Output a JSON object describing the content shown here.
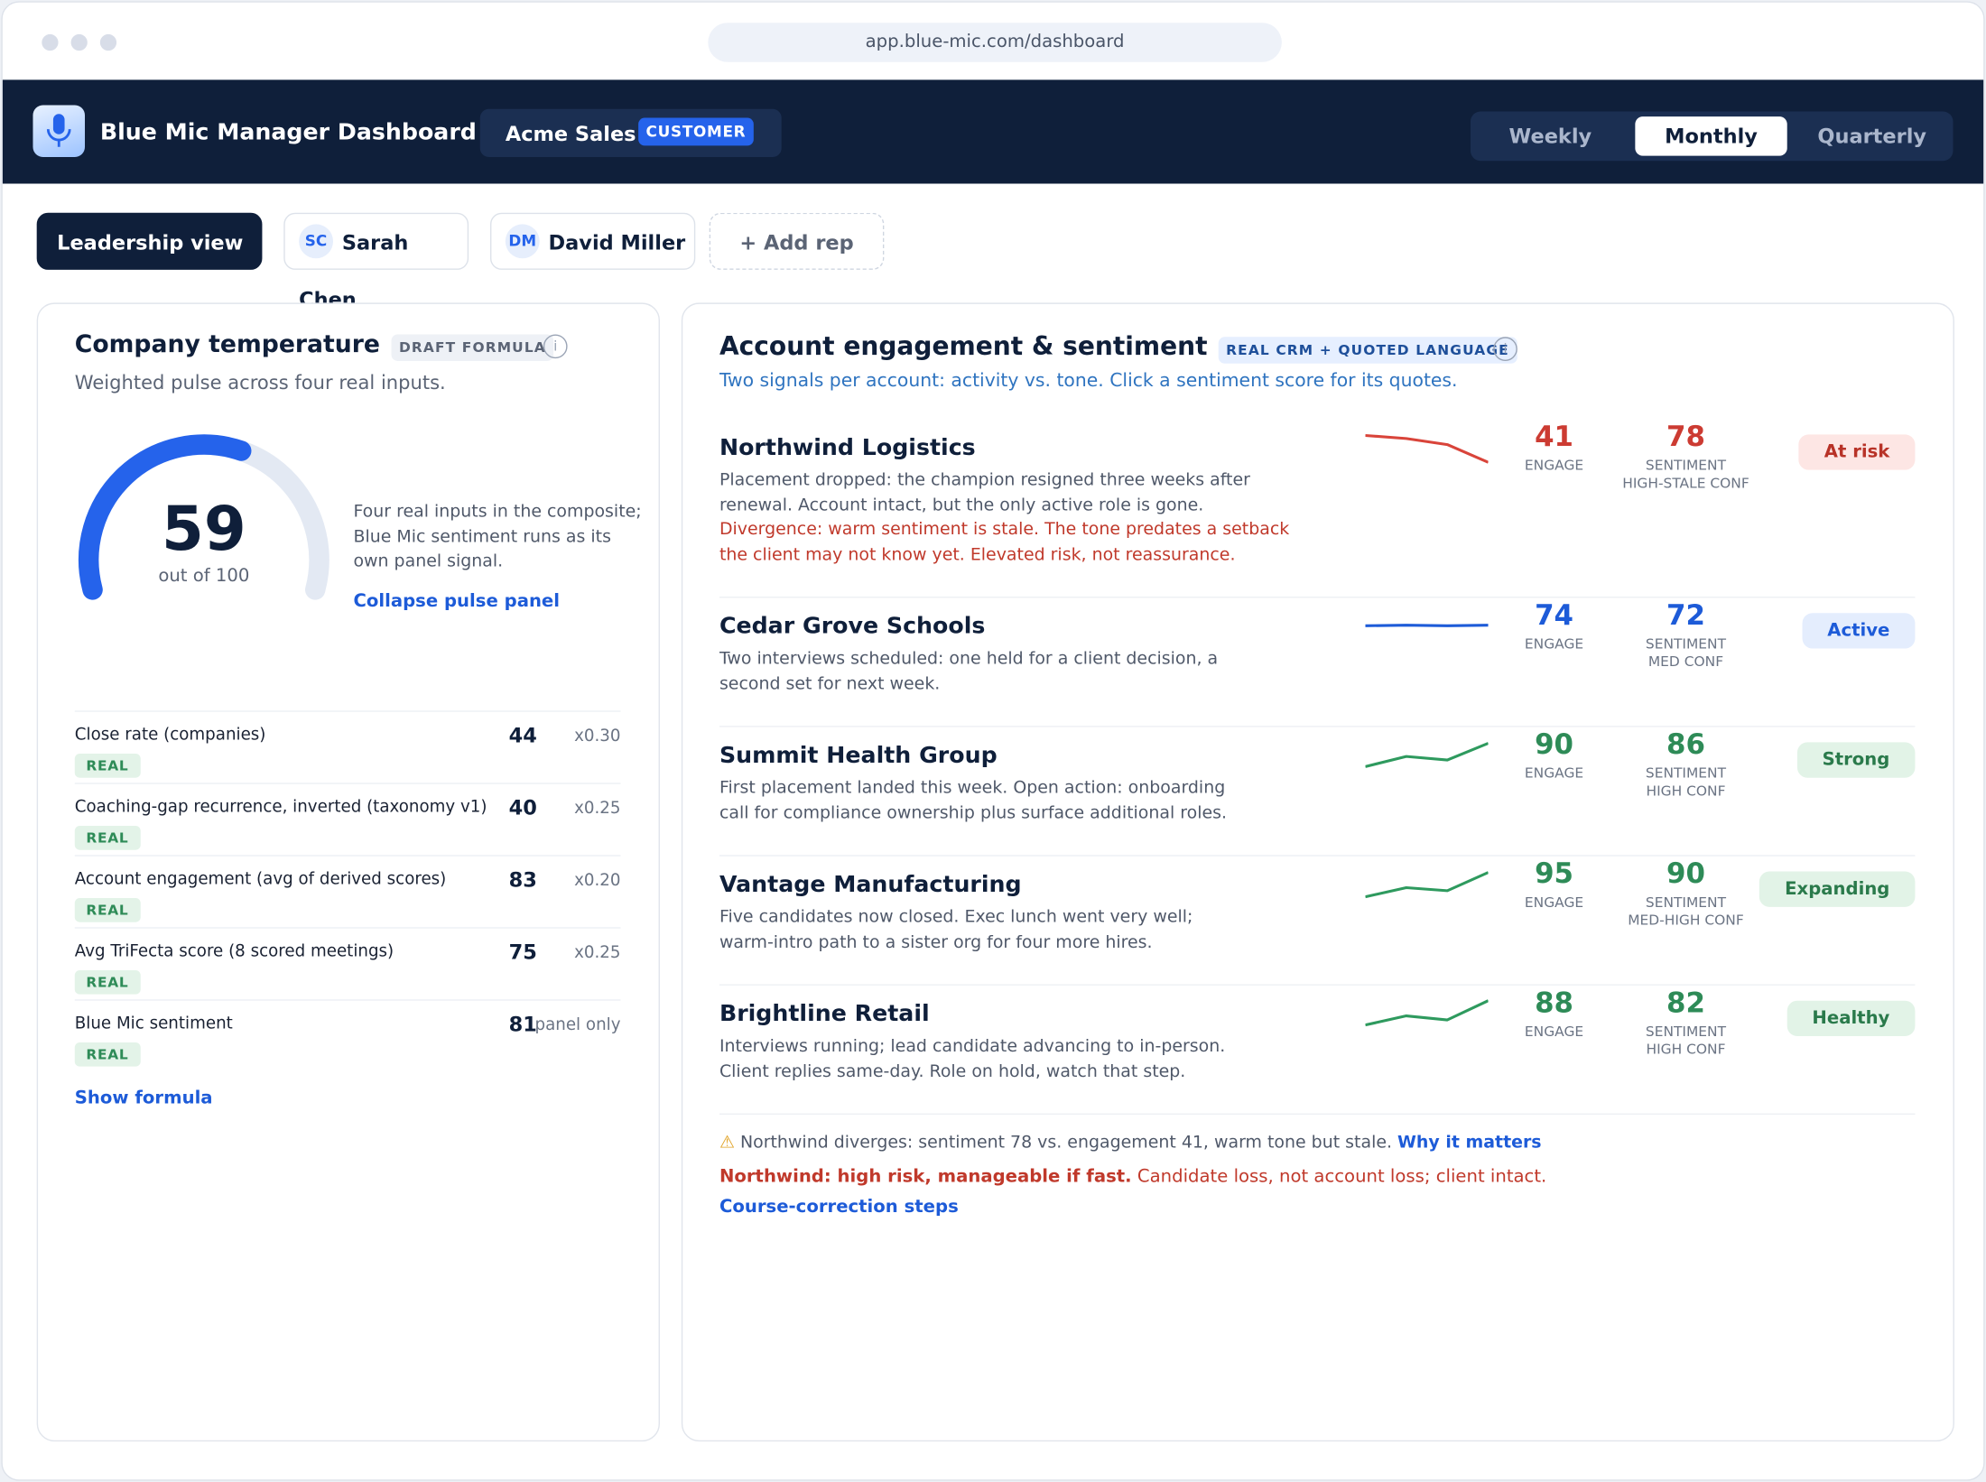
{
  "browser": {
    "url": "app.blue-mic.com/dashboard"
  },
  "header": {
    "title": "Blue Mic Manager Dashboard",
    "org": "Acme Sales",
    "org_badge": "CUSTOMER",
    "periods": [
      "Weekly",
      "Monthly",
      "Quarterly"
    ],
    "active_period": 1
  },
  "tabs": {
    "items": [
      {
        "label": "Leadership view"
      },
      {
        "initials": "SC",
        "label": "Sarah Chen"
      },
      {
        "initials": "DM",
        "label": "David Miller"
      }
    ],
    "add": "+ Add rep",
    "active": 0
  },
  "temperature": {
    "title": "Company temperature",
    "badge": "DRAFT FORMULA",
    "subtitle": "Weighted pulse across four real inputs.",
    "gauge": {
      "value": 59,
      "range": [
        0,
        100
      ],
      "caption": "out of 100"
    },
    "note": "Four real inputs in the composite; Blue Mic sentiment runs as its own panel signal.",
    "link": "Collapse pulse panel",
    "inputs": [
      {
        "label": "Close rate (companies)",
        "tag": "REAL",
        "value": 44,
        "weight": "x0.30"
      },
      {
        "label": "Coaching-gap recurrence, inverted (taxonomy v1)",
        "tag": "REAL",
        "value": 40,
        "weight": "x0.25"
      },
      {
        "label": "Account engagement (avg of derived scores)",
        "tag": "REAL",
        "value": 83,
        "weight": "x0.20"
      },
      {
        "label": "Avg TriFecta score (8 scored meetings)",
        "tag": "REAL",
        "value": 75,
        "weight": "x0.25"
      },
      {
        "label": "Blue Mic sentiment",
        "tag": "REAL",
        "value": 81,
        "weight": "panel only"
      }
    ],
    "footer_link": "Show formula"
  },
  "accounts": {
    "title": "Account engagement & sentiment",
    "badge": "REAL CRM + QUOTED LANGUAGE",
    "subtitle": "Two signals per account: activity vs. tone. Click a sentiment score for its quotes.",
    "trend_ylim": [
      0,
      100
    ],
    "rows": [
      {
        "name": "Northwind Logistics",
        "description": "Placement dropped: the champion resigned three weeks after renewal. Account intact, but the only active role is gone.",
        "divergence": "Divergence: warm sentiment is stale. The tone predates a setback the client may not know yet. Elevated risk, not reassurance.",
        "trend": [
          68,
          62,
          50,
          15
        ],
        "engage": 41,
        "engage_label": "ENGAGE",
        "sentiment": 78,
        "sentiment_label": "SENTIMENT",
        "confidence": "HIGH-STALE CONF",
        "status": "At risk",
        "tone": "risk"
      },
      {
        "name": "Cedar Grove Schools",
        "description": "Two interviews scheduled: one held for a client decision, a second set for next week.",
        "trend": [
          45,
          46,
          45,
          46
        ],
        "engage": 74,
        "engage_label": "ENGAGE",
        "sentiment": 72,
        "sentiment_label": "SENTIMENT",
        "confidence": "MED CONF",
        "status": "Active",
        "tone": "active"
      },
      {
        "name": "Summit Health Group",
        "description": "First placement landed this week. Open action: onboarding call for compliance ownership plus surface additional roles.",
        "trend": [
          22,
          42,
          35,
          68
        ],
        "engage": 90,
        "engage_label": "ENGAGE",
        "sentiment": 86,
        "sentiment_label": "SENTIMENT",
        "confidence": "HIGH CONF",
        "status": "Strong",
        "tone": "good"
      },
      {
        "name": "Vantage Manufacturing",
        "description": "Five candidates now closed. Exec lunch went very well; warm-intro path to a sister org for four more hires.",
        "trend": [
          20,
          38,
          32,
          68
        ],
        "engage": 95,
        "engage_label": "ENGAGE",
        "sentiment": 90,
        "sentiment_label": "SENTIMENT",
        "confidence": "MED-HIGH CONF",
        "status": "Expanding",
        "tone": "good"
      },
      {
        "name": "Brightline Retail",
        "description": "Interviews running; lead candidate advancing to in-person. Client replies same-day. Role on hold, watch that step.",
        "trend": [
          22,
          40,
          32,
          70
        ],
        "engage": 88,
        "engage_label": "ENGAGE",
        "sentiment": 82,
        "sentiment_label": "SENTIMENT",
        "confidence": "HIGH CONF",
        "status": "Healthy",
        "tone": "good"
      }
    ],
    "alert": {
      "icon": "⚠",
      "text": "Northwind diverges: sentiment 78 vs. engagement 41, warm tone but stale.",
      "link": "Why it matters",
      "risk_lead": "Northwind: high risk, manageable if fast.",
      "risk_text": "Candidate loss, not account loss; client intact.",
      "steps_link": "Course-correction steps"
    }
  }
}
